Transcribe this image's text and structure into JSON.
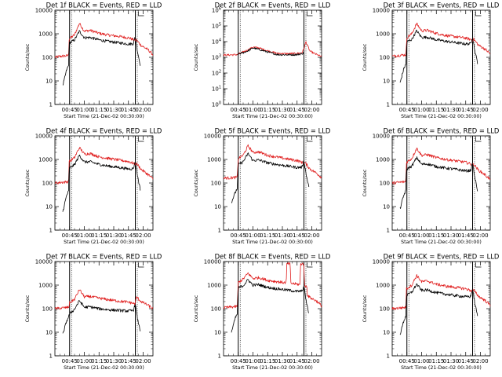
{
  "colors": {
    "events": "#000000",
    "lld": "#e02020",
    "axis": "#000000",
    "background": "#ffffff"
  },
  "series_names": [
    "Events",
    "LLD"
  ],
  "chart_data": [
    {
      "type": "line",
      "title": "Det 1f BLACK = Events, RED = LLD",
      "xlabel": "Start Time (21-Dec-02 00:30:00)",
      "ylabel": "Counts/sec",
      "yscale": "log",
      "ylim": [
        1,
        10000
      ],
      "ytick_labels": [
        "1",
        "10",
        "100",
        "1000",
        "10000"
      ],
      "xlim_minutes": [
        0,
        100
      ],
      "xtick_labels": [
        "00:45",
        "01:00",
        "01:15",
        "01:30",
        "01:45",
        "02:00"
      ],
      "markers_minutes": [
        15,
        82
      ],
      "series": [
        {
          "name": "LLD",
          "x": [
            0,
            5,
            10,
            14,
            14.5,
            20,
            25,
            30,
            36,
            45,
            55,
            65,
            75,
            82,
            82.5,
            88,
            95,
            100
          ],
          "y": [
            100,
            110,
            115,
            120,
            600,
            900,
            2800,
            1300,
            1400,
            1050,
            880,
            780,
            680,
            530,
            580,
            320,
            210,
            130
          ]
        },
        {
          "name": "Events",
          "x": [
            8,
            12,
            14,
            14.5,
            20,
            25,
            30,
            36,
            45,
            55,
            65,
            75,
            80,
            82,
            84,
            87
          ],
          "y": [
            6,
            30,
            45,
            400,
            550,
            1300,
            680,
            700,
            550,
            470,
            420,
            370,
            380,
            800,
            200,
            50
          ]
        }
      ]
    },
    {
      "type": "line",
      "title": "Det 2f BLACK = Events, RED = LLD",
      "xlabel": "Start Time (21-Dec-02 00:30:00)",
      "ylabel": "Counts/sec",
      "yscale": "log",
      "ylim": [
        1,
        1000000
      ],
      "ytick_labels": [
        "10^0",
        "10^1",
        "10^2",
        "10^3",
        "10^4",
        "10^5",
        "10^6"
      ],
      "xlim_minutes": [
        0,
        100
      ],
      "xtick_labels": [
        "00:45",
        "01:00",
        "01:15",
        "01:30",
        "01:45",
        "02:00"
      ],
      "markers_minutes": [
        15,
        82
      ],
      "series": [
        {
          "name": "LLD",
          "x": [
            0,
            10,
            14,
            15,
            20,
            25,
            30,
            36,
            45,
            55,
            65,
            75,
            80,
            82,
            84,
            88,
            95,
            100
          ],
          "y": [
            1400,
            1450,
            1500,
            1600,
            2200,
            3000,
            4500,
            4000,
            2600,
            1800,
            1700,
            1800,
            2000,
            3500,
            10000,
            2500,
            1500,
            1100
          ]
        },
        {
          "name": "Events",
          "x": [
            14,
            15,
            20,
            25,
            30,
            36,
            45,
            55,
            65,
            75,
            80,
            82
          ],
          "y": [
            1400,
            1600,
            2000,
            2600,
            4000,
            3200,
            2200,
            1500,
            1450,
            1500,
            1700,
            2000
          ]
        }
      ]
    },
    {
      "type": "line",
      "title": "Det 3f BLACK = Events, RED = LLD",
      "xlabel": "Start Time (21-Dec-02 00:30:00)",
      "ylabel": "Counts/sec",
      "yscale": "log",
      "ylim": [
        1,
        10000
      ],
      "ytick_labels": [
        "1",
        "10",
        "100",
        "1000",
        "10000"
      ],
      "xlim_minutes": [
        0,
        100
      ],
      "xtick_labels": [
        "00:45",
        "01:00",
        "01:15",
        "01:30",
        "01:45",
        "02:00"
      ],
      "markers_minutes": [
        15,
        82
      ],
      "series": [
        {
          "name": "LLD",
          "x": [
            0,
            5,
            10,
            14,
            15,
            20,
            25,
            30,
            36,
            45,
            55,
            65,
            75,
            82,
            83,
            88,
            95,
            100
          ],
          "y": [
            110,
            120,
            125,
            130,
            700,
            1000,
            2700,
            1350,
            1400,
            1050,
            850,
            750,
            660,
            540,
            600,
            330,
            220,
            140
          ]
        },
        {
          "name": "Events",
          "x": [
            8,
            12,
            14,
            15,
            20,
            25,
            30,
            36,
            45,
            55,
            65,
            75,
            80,
            82,
            84,
            87
          ],
          "y": [
            8,
            35,
            50,
            450,
            580,
            1350,
            700,
            720,
            560,
            480,
            420,
            370,
            380,
            750,
            220,
            60
          ]
        }
      ]
    },
    {
      "type": "line",
      "title": "Det 4f BLACK = Events, RED = LLD",
      "xlabel": "Start Time (21-Dec-02 00:30:00)",
      "ylabel": "Counts/sec",
      "yscale": "log",
      "ylim": [
        1,
        10000
      ],
      "ytick_labels": [
        "1",
        "10",
        "100",
        "1000",
        "10000"
      ],
      "xlim_minutes": [
        0,
        100
      ],
      "xtick_labels": [
        "00:45",
        "01:00",
        "01:15",
        "01:30",
        "01:45",
        "02:00"
      ],
      "markers_minutes": [
        15,
        82
      ],
      "series": [
        {
          "name": "LLD",
          "x": [
            0,
            5,
            10,
            14,
            14.5,
            20,
            25,
            30,
            36,
            45,
            55,
            65,
            75,
            82,
            83,
            88,
            95,
            100
          ],
          "y": [
            100,
            105,
            110,
            115,
            800,
            1200,
            3200,
            1700,
            1800,
            1300,
            1100,
            950,
            820,
            640,
            700,
            380,
            230,
            150
          ]
        },
        {
          "name": "Events",
          "x": [
            8,
            12,
            14,
            14.5,
            20,
            25,
            30,
            36,
            45,
            55,
            65,
            75,
            80,
            82,
            84,
            87
          ],
          "y": [
            6,
            30,
            45,
            420,
            600,
            1500,
            780,
            800,
            620,
            520,
            460,
            400,
            410,
            850,
            230,
            55
          ]
        }
      ]
    },
    {
      "type": "line",
      "title": "Det 5f BLACK = Events, RED = LLD",
      "xlabel": "Start Time (21-Dec-02 00:30:00)",
      "ylabel": "Counts/sec",
      "yscale": "log",
      "ylim": [
        1,
        10000
      ],
      "ytick_labels": [
        "1",
        "10",
        "100",
        "1000",
        "10000"
      ],
      "xlim_minutes": [
        0,
        100
      ],
      "xtick_labels": [
        "00:45",
        "01:00",
        "01:15",
        "01:30",
        "01:45",
        "02:00"
      ],
      "markers_minutes": [
        15,
        82
      ],
      "series": [
        {
          "name": "LLD",
          "x": [
            0,
            5,
            10,
            14,
            15,
            20,
            25,
            30,
            36,
            45,
            55,
            65,
            75,
            82,
            83,
            88,
            95,
            100
          ],
          "y": [
            160,
            165,
            170,
            175,
            1100,
            1500,
            3800,
            2000,
            2100,
            1500,
            1250,
            1050,
            900,
            700,
            750,
            400,
            260,
            170
          ]
        },
        {
          "name": "Events",
          "x": [
            8,
            12,
            14,
            15,
            20,
            25,
            30,
            36,
            45,
            55,
            65,
            75,
            80,
            82,
            84,
            87
          ],
          "y": [
            15,
            40,
            60,
            600,
            800,
            1800,
            900,
            950,
            720,
            610,
            530,
            460,
            470,
            900,
            260,
            70
          ]
        }
      ]
    },
    {
      "type": "line",
      "title": "Det 6f BLACK = Events, RED = LLD",
      "xlabel": "Start Time (21-Dec-02 00:30:00)",
      "ylabel": "Counts/sec",
      "yscale": "log",
      "ylim": [
        1,
        10000
      ],
      "ytick_labels": [
        "1",
        "10",
        "100",
        "1000",
        "10000"
      ],
      "xlim_minutes": [
        0,
        100
      ],
      "xtick_labels": [
        "00:45",
        "01:00",
        "01:15",
        "01:30",
        "01:45",
        "02:00"
      ],
      "markers_minutes": [
        15,
        82
      ],
      "series": [
        {
          "name": "LLD",
          "x": [
            0,
            5,
            10,
            14,
            14.5,
            20,
            25,
            30,
            36,
            45,
            55,
            65,
            75,
            82,
            83,
            88,
            95,
            100
          ],
          "y": [
            100,
            105,
            110,
            115,
            750,
            1100,
            3000,
            1500,
            1600,
            1200,
            1000,
            870,
            760,
            600,
            650,
            350,
            220,
            140
          ]
        },
        {
          "name": "Events",
          "x": [
            8,
            12,
            14,
            14.5,
            20,
            25,
            30,
            36,
            45,
            55,
            65,
            75,
            80,
            82,
            84,
            87
          ],
          "y": [
            8,
            32,
            48,
            380,
            520,
            1200,
            620,
            650,
            500,
            430,
            380,
            330,
            340,
            700,
            200,
            50
          ]
        }
      ]
    },
    {
      "type": "line",
      "title": "Det 7f BLACK = Events, RED = LLD",
      "xlabel": "Start Time (21-Dec-02 00:30:00)",
      "ylabel": "Counts/sec",
      "yscale": "log",
      "ylim": [
        1,
        10000
      ],
      "ytick_labels": [
        "1",
        "10",
        "100",
        "1000",
        "10000"
      ],
      "xlim_minutes": [
        0,
        100
      ],
      "xtick_labels": [
        "00:45",
        "01:00",
        "01:15",
        "01:30",
        "01:45",
        "02:00"
      ],
      "markers_minutes": [
        15,
        82
      ],
      "series": [
        {
          "name": "LLD",
          "x": [
            0,
            5,
            10,
            14,
            15,
            20,
            25,
            30,
            36,
            45,
            55,
            65,
            75,
            82,
            83,
            88,
            95,
            100
          ],
          "y": [
            100,
            105,
            110,
            115,
            180,
            250,
            650,
            320,
            330,
            280,
            240,
            210,
            190,
            160,
            320,
            200,
            140,
            100
          ]
        },
        {
          "name": "Events",
          "x": [
            8,
            12,
            14,
            15,
            20,
            25,
            30,
            36,
            45,
            55,
            65,
            75,
            80,
            82,
            84,
            87
          ],
          "y": [
            8,
            30,
            45,
            60,
            95,
            220,
            115,
            120,
            100,
            90,
            85,
            80,
            85,
            160,
            40,
            12
          ]
        }
      ]
    },
    {
      "type": "line",
      "title": "Det 8f BLACK = Events, RED = LLD",
      "xlabel": "Start Time (21-Dec-02 00:30:00)",
      "ylabel": "Counts/sec",
      "yscale": "log",
      "ylim": [
        1,
        10000
      ],
      "ytick_labels": [
        "1",
        "10",
        "100",
        "1000",
        "10000"
      ],
      "xlim_minutes": [
        0,
        100
      ],
      "xtick_labels": [
        "00:45",
        "01:00",
        "01:15",
        "01:30",
        "01:45",
        "02:00"
      ],
      "markers_minutes": [
        15,
        82
      ],
      "series": [
        {
          "name": "LLD",
          "x": [
            0,
            5,
            10,
            14,
            15,
            20,
            25,
            30,
            36,
            45,
            55,
            64,
            64.5,
            68,
            68.5,
            75,
            78,
            78.5,
            82,
            82.5,
            85,
            85.5,
            88,
            95,
            100
          ],
          "y": [
            110,
            115,
            120,
            125,
            1300,
            1800,
            3200,
            1900,
            2100,
            1600,
            1400,
            1250,
            8000,
            8000,
            1200,
            1100,
            1050,
            8000,
            8000,
            900,
            900,
            380,
            300,
            210,
            130
          ]
        },
        {
          "name": "Events",
          "x": [
            8,
            12,
            14,
            15,
            20,
            25,
            30,
            36,
            45,
            55,
            65,
            75,
            80,
            82,
            84,
            87
          ],
          "y": [
            10,
            40,
            60,
            750,
            950,
            1700,
            1000,
            1050,
            800,
            700,
            620,
            540,
            560,
            900,
            250,
            60
          ]
        }
      ]
    },
    {
      "type": "line",
      "title": "Det 9f BLACK = Events, RED = LLD",
      "xlabel": "Start Time (21-Dec-02 00:30:00)",
      "ylabel": "Counts/sec",
      "yscale": "log",
      "ylim": [
        1,
        10000
      ],
      "ytick_labels": [
        "1",
        "10",
        "100",
        "1000",
        "10000"
      ],
      "xlim_minutes": [
        0,
        100
      ],
      "xtick_labels": [
        "00:45",
        "01:00",
        "01:15",
        "01:30",
        "01:45",
        "02:00"
      ],
      "markers_minutes": [
        15,
        82
      ],
      "series": [
        {
          "name": "LLD",
          "x": [
            0,
            5,
            10,
            14,
            14.5,
            20,
            25,
            30,
            36,
            45,
            55,
            65,
            75,
            82,
            83,
            88,
            95,
            100
          ],
          "y": [
            100,
            105,
            110,
            115,
            700,
            1000,
            2600,
            1400,
            1500,
            1100,
            900,
            800,
            700,
            560,
            620,
            340,
            220,
            140
          ]
        },
        {
          "name": "Events",
          "x": [
            8,
            12,
            14,
            14.5,
            20,
            25,
            30,
            36,
            45,
            55,
            65,
            75,
            80,
            82,
            84,
            87
          ],
          "y": [
            8,
            32,
            48,
            360,
            500,
            1100,
            600,
            620,
            480,
            410,
            360,
            320,
            330,
            680,
            200,
            50
          ]
        }
      ]
    }
  ]
}
